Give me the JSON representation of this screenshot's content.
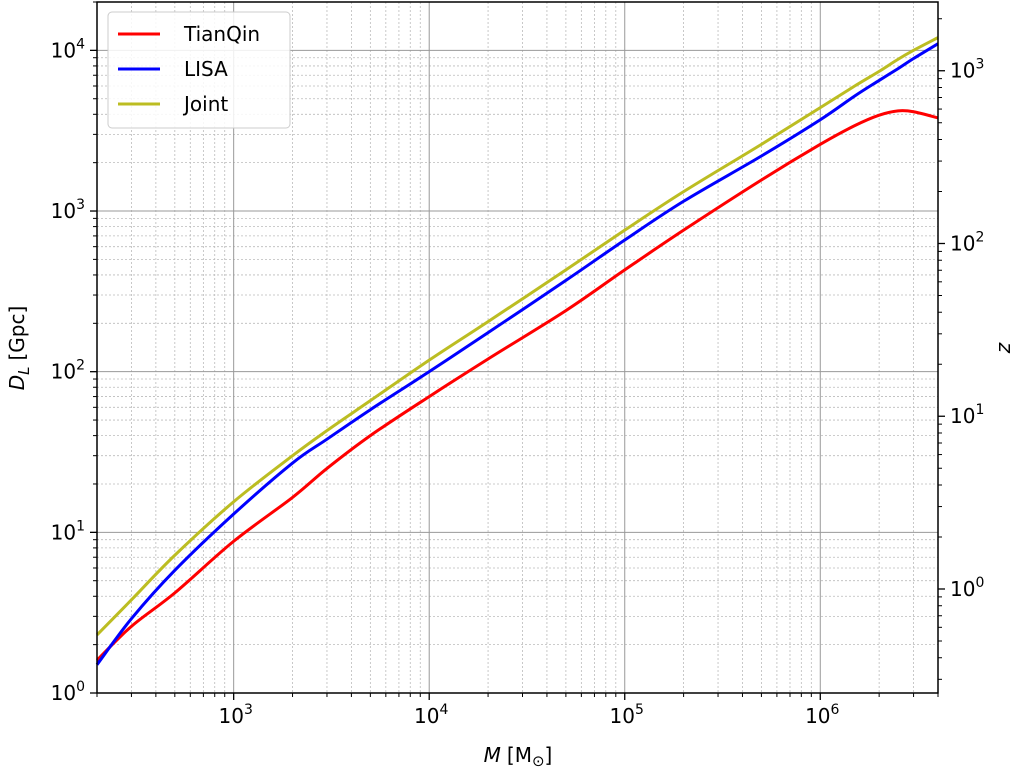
{
  "chart_data": {
    "type": "line",
    "xlabel": {
      "symbol": "M",
      "unit": "[M",
      "unit_sub": "⊙",
      "unit_close": "]"
    },
    "ylabel": {
      "symbol": "D",
      "sub": "L",
      "unit": "[Gpc]"
    },
    "y2label": "z",
    "xscale": "log",
    "yscale": "log",
    "y2scale": "log",
    "xlim": [
      200,
      4000000
    ],
    "ylim": [
      1,
      20000
    ],
    "y2lim": [
      0.25,
      2500
    ],
    "grid": true,
    "legend_position": "top-left",
    "x_ticks": [
      {
        "value": 1000,
        "base": "10",
        "exp": "3"
      },
      {
        "value": 10000,
        "base": "10",
        "exp": "4"
      },
      {
        "value": 100000,
        "base": "10",
        "exp": "5"
      },
      {
        "value": 1000000,
        "base": "10",
        "exp": "6"
      }
    ],
    "y_ticks": [
      {
        "value": 1,
        "base": "10",
        "exp": "0"
      },
      {
        "value": 10,
        "base": "10",
        "exp": "1"
      },
      {
        "value": 100,
        "base": "10",
        "exp": "2"
      },
      {
        "value": 1000,
        "base": "10",
        "exp": "3"
      },
      {
        "value": 10000,
        "base": "10",
        "exp": "4"
      }
    ],
    "y2_ticks": [
      {
        "value": 1,
        "base": "10",
        "exp": "0"
      },
      {
        "value": 10,
        "base": "10",
        "exp": "1"
      },
      {
        "value": 100,
        "base": "10",
        "exp": "2"
      },
      {
        "value": 1000,
        "base": "10",
        "exp": "3"
      }
    ],
    "series": [
      {
        "name": "TianQin",
        "color": "#ff0000",
        "x": [
          200,
          300,
          500,
          1000,
          2000,
          3000,
          5000,
          10000,
          20000,
          50000,
          100000,
          200000,
          500000,
          1000000,
          1500000,
          2000000,
          2500000,
          3000000,
          4000000
        ],
        "y": [
          1.6,
          2.6,
          4.2,
          8.8,
          16.5,
          25,
          40,
          70,
          120,
          240,
          430,
          760,
          1560,
          2600,
          3400,
          3950,
          4200,
          4150,
          3800
        ]
      },
      {
        "name": "LISA",
        "color": "#0000ff",
        "x": [
          200,
          300,
          500,
          1000,
          2000,
          3000,
          5000,
          10000,
          20000,
          50000,
          100000,
          200000,
          500000,
          1000000,
          1500000,
          2000000,
          2500000,
          3000000,
          4000000
        ],
        "y": [
          1.5,
          2.9,
          5.8,
          13,
          27,
          38,
          58,
          100,
          175,
          370,
          660,
          1150,
          2200,
          3700,
          5200,
          6500,
          7700,
          8900,
          11000
        ]
      },
      {
        "name": "Joint",
        "color": "#bcbd22",
        "x": [
          200,
          300,
          500,
          1000,
          2000,
          3000,
          5000,
          10000,
          20000,
          50000,
          100000,
          200000,
          500000,
          1000000,
          1500000,
          2000000,
          2500000,
          3000000,
          4000000
        ],
        "y": [
          2.3,
          3.8,
          7.2,
          15.5,
          30,
          43,
          66,
          118,
          205,
          430,
          760,
          1320,
          2600,
          4400,
          6000,
          7400,
          8800,
          10000,
          12000
        ]
      }
    ]
  }
}
